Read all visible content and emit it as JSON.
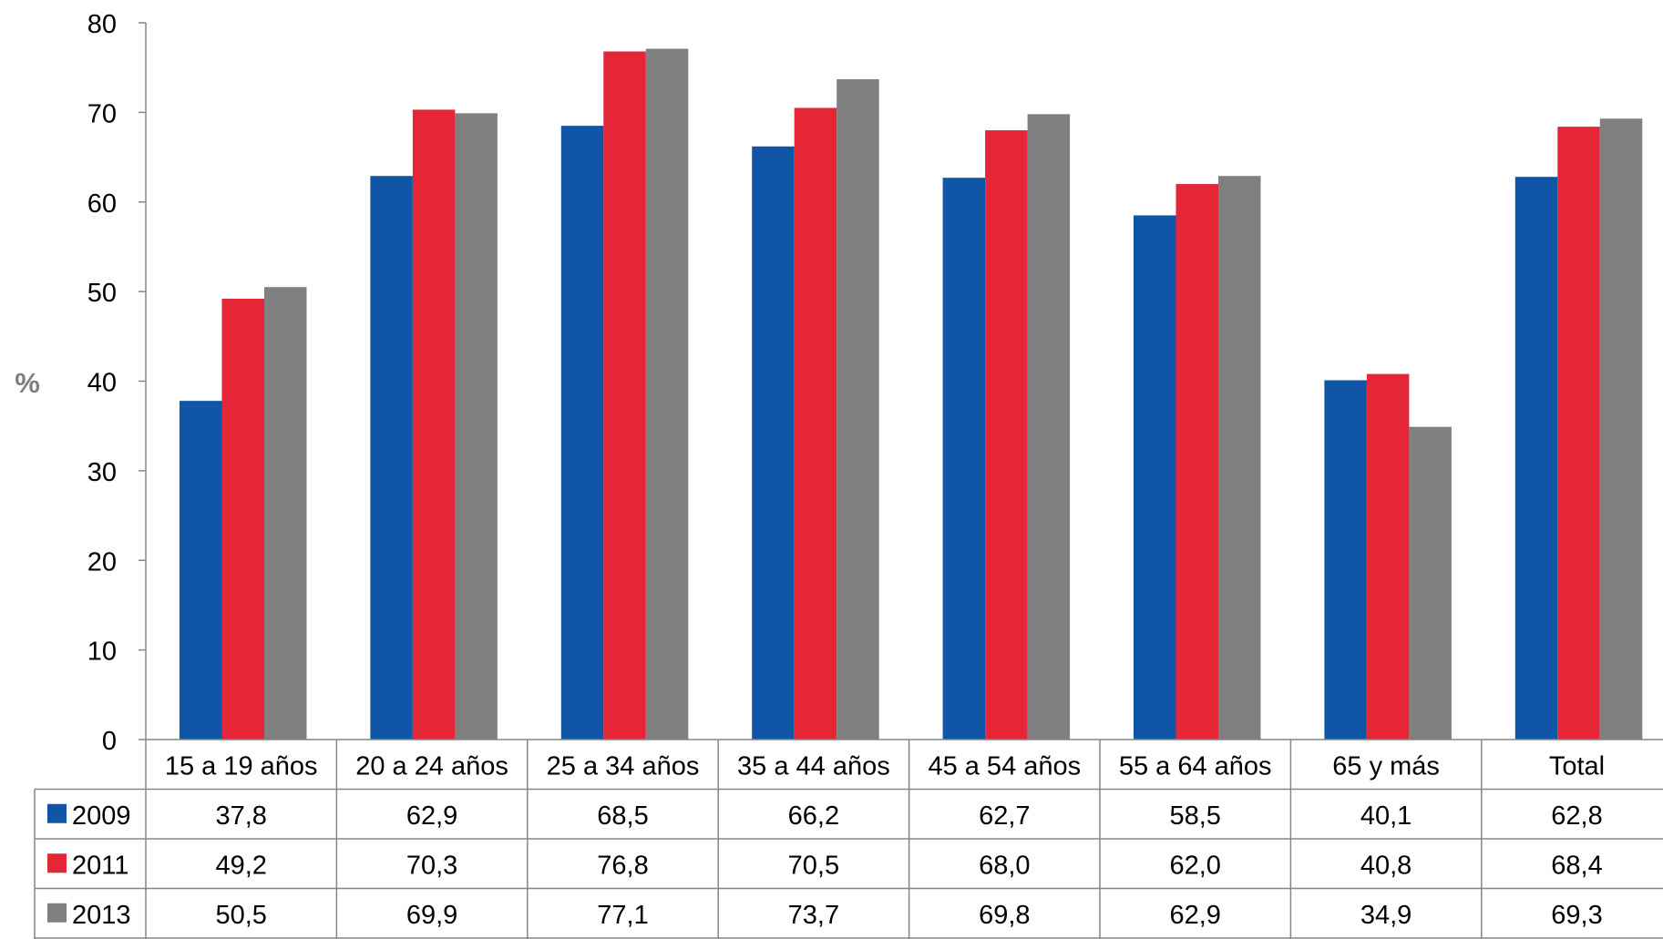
{
  "chart_data": {
    "type": "bar",
    "title": "",
    "xlabel": "",
    "ylabel": "%",
    "ylim": [
      0,
      80
    ],
    "yticks": [
      0,
      10,
      20,
      30,
      40,
      50,
      60,
      70,
      80
    ],
    "ytick_labels": [
      "0",
      "10",
      "20",
      "30",
      "40",
      "50",
      "60",
      "70",
      "80"
    ],
    "grid": false,
    "legend": "data-table",
    "categories": [
      "15 a 19 años",
      "20 a 24 años",
      "25 a 34 años",
      "35 a 44 años",
      "45 a 54 años",
      "55 a 64 años",
      "65 y más",
      "Total"
    ],
    "series": [
      {
        "name": "2009",
        "color": "#1155a6",
        "values": [
          37.8,
          62.9,
          68.5,
          66.2,
          62.7,
          58.5,
          40.1,
          62.8
        ],
        "labels": [
          "37,8",
          "62,9",
          "68,5",
          "66,2",
          "62,7",
          "58,5",
          "40,1",
          "62,8"
        ]
      },
      {
        "name": "2011",
        "color": "#e52637",
        "values": [
          49.2,
          70.3,
          76.8,
          70.5,
          68.0,
          62.0,
          40.8,
          68.4
        ],
        "labels": [
          "49,2",
          "70,3",
          "76,8",
          "70,5",
          "68,0",
          "62,0",
          "40,8",
          "68,4"
        ]
      },
      {
        "name": "2013",
        "color": "#808080",
        "values": [
          50.5,
          69.9,
          77.1,
          73.7,
          69.8,
          62.9,
          34.9,
          69.3
        ],
        "labels": [
          "50,5",
          "69,9",
          "77,1",
          "73,7",
          "69,8",
          "62,9",
          "34,9",
          "69,3"
        ]
      }
    ]
  }
}
